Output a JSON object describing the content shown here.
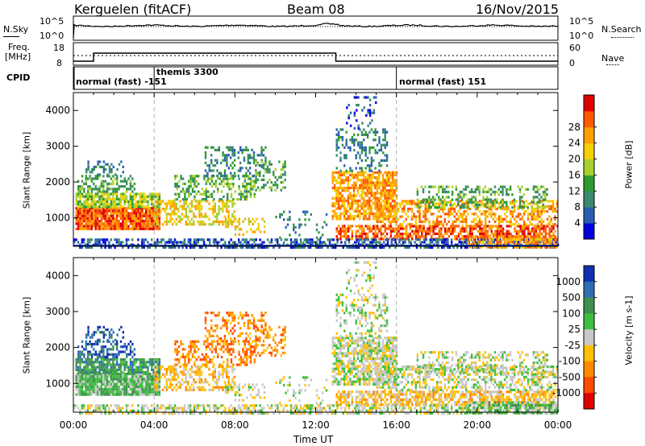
{
  "header": {
    "station": "Kerguelen (fitACF)",
    "beam": "Beam 08",
    "date": "16/Nov/2015"
  },
  "top_panels": {
    "nsky_label": "N.Sky",
    "nsky_ticks": [
      "10^5",
      "10^0"
    ],
    "nsearch_label": "N.Search",
    "nsearch_ticks": [
      "10^5",
      "10^0"
    ],
    "freq_label_1": "Freq.",
    "freq_label_2": "[MHz]",
    "freq_ticks": [
      "18",
      "8"
    ],
    "nave_label": "Nave",
    "nave_ticks": [
      "60",
      "0"
    ],
    "cpid_label": "CPID",
    "cpid_segments": [
      {
        "label": "normal (fast) -151",
        "start_hour": 0
      },
      {
        "label": "themis 3300",
        "start_hour": 4
      },
      {
        "label": "normal (fast) 151",
        "start_hour": 16
      }
    ]
  },
  "chart_data": [
    {
      "type": "heatmap",
      "name": "power",
      "ylabel": "Slant Range [km]",
      "xlabel": "",
      "x_range_hours": [
        0,
        24
      ],
      "ylim": [
        200,
        4500
      ],
      "yticks": [
        "1000",
        "2000",
        "3000",
        "4000"
      ],
      "colorbar_label": "Power [dB]",
      "colorbar_ticks": [
        "4",
        "8",
        "12",
        "16",
        "20",
        "24",
        "28"
      ],
      "colorbar_colors": [
        "#0000e0",
        "#2a5fb0",
        "#3a8a70",
        "#2f9a2f",
        "#a6cf2f",
        "#f4d000",
        "#ff9f00",
        "#ff5a00",
        "#e00000"
      ],
      "grid": false
    },
    {
      "type": "heatmap",
      "name": "velocity",
      "ylabel": "Slant Range [km]",
      "xlabel": "Time UT",
      "x_range_hours": [
        0,
        24
      ],
      "xticks": [
        "00:00",
        "04:00",
        "08:00",
        "12:00",
        "16:00",
        "20:00",
        "00:00"
      ],
      "ylim": [
        200,
        4500
      ],
      "yticks": [
        "1000",
        "2000",
        "3000",
        "4000"
      ],
      "colorbar_label": "Velocity [m s-1]",
      "colorbar_ticks": [
        "1000",
        "500",
        "100",
        "25",
        "-25",
        "-100",
        "-500",
        "-1000"
      ],
      "colorbar_colors": [
        "#0f2fb0",
        "#2f6fb0",
        "#3f8f4f",
        "#3fbf3f",
        "#c8c8c8",
        "#ffc000",
        "#ff8a00",
        "#ff4a00",
        "#e00000"
      ],
      "grid": false
    }
  ],
  "colors": {
    "cpid_line": "#000000",
    "time_marker_dash": "#b0b0b0",
    "ground_scatter": "#c8c8c8"
  }
}
